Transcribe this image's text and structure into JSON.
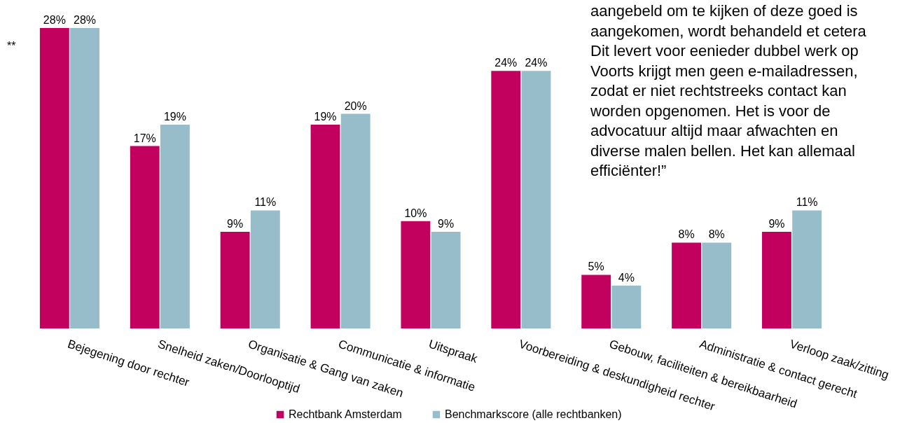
{
  "chart_data": {
    "type": "bar",
    "categories": [
      "Bejegening door rechter",
      "Snelheid zaken/Doorlooptijd",
      "Organisatie & Gang van zaken",
      "Communicatie & informatie",
      "Uitspraak",
      "Voorbereiding & deskundigheid rechter",
      "Gebouw, faciliteiten & bereikbaarheid",
      "Administratie & contact gerecht",
      "Verloop zaak/zitting"
    ],
    "series": [
      {
        "name": "Rechtbank Amsterdam",
        "color": "#c2005e",
        "values": [
          28,
          17,
          9,
          19,
          10,
          24,
          5,
          8,
          9
        ],
        "value_labels": [
          "28%",
          "17%",
          "9%",
          "19%",
          "10%",
          "24%",
          "5%",
          "8%",
          "9%"
        ]
      },
      {
        "name": "Benchmarkscore (alle rechtbanken)",
        "color": "#97bdcb",
        "values": [
          28,
          19,
          11,
          20,
          9,
          24,
          4,
          8,
          11
        ],
        "value_labels": [
          "28%",
          "19%",
          "11%",
          "20%",
          "9%",
          "24%",
          "4%",
          "8%",
          "11%"
        ]
      }
    ],
    "annotations": [
      "**",
      "aangebeld om te kijken of deze goed is aangekomen, wordt behandeld et cetera Dit levert voor eenieder dubbel werk op Voorts krijgt men geen e-mailadressen, zodat er niet rechtstreeks contact kan worden opgenomen. Het is voor de advocatuur altijd maar afwachten en diverse malen bellen. Het kan allemaal efficiënter!”"
    ],
    "legend": "bottom",
    "tick_labels": "x",
    "grid": false
  }
}
